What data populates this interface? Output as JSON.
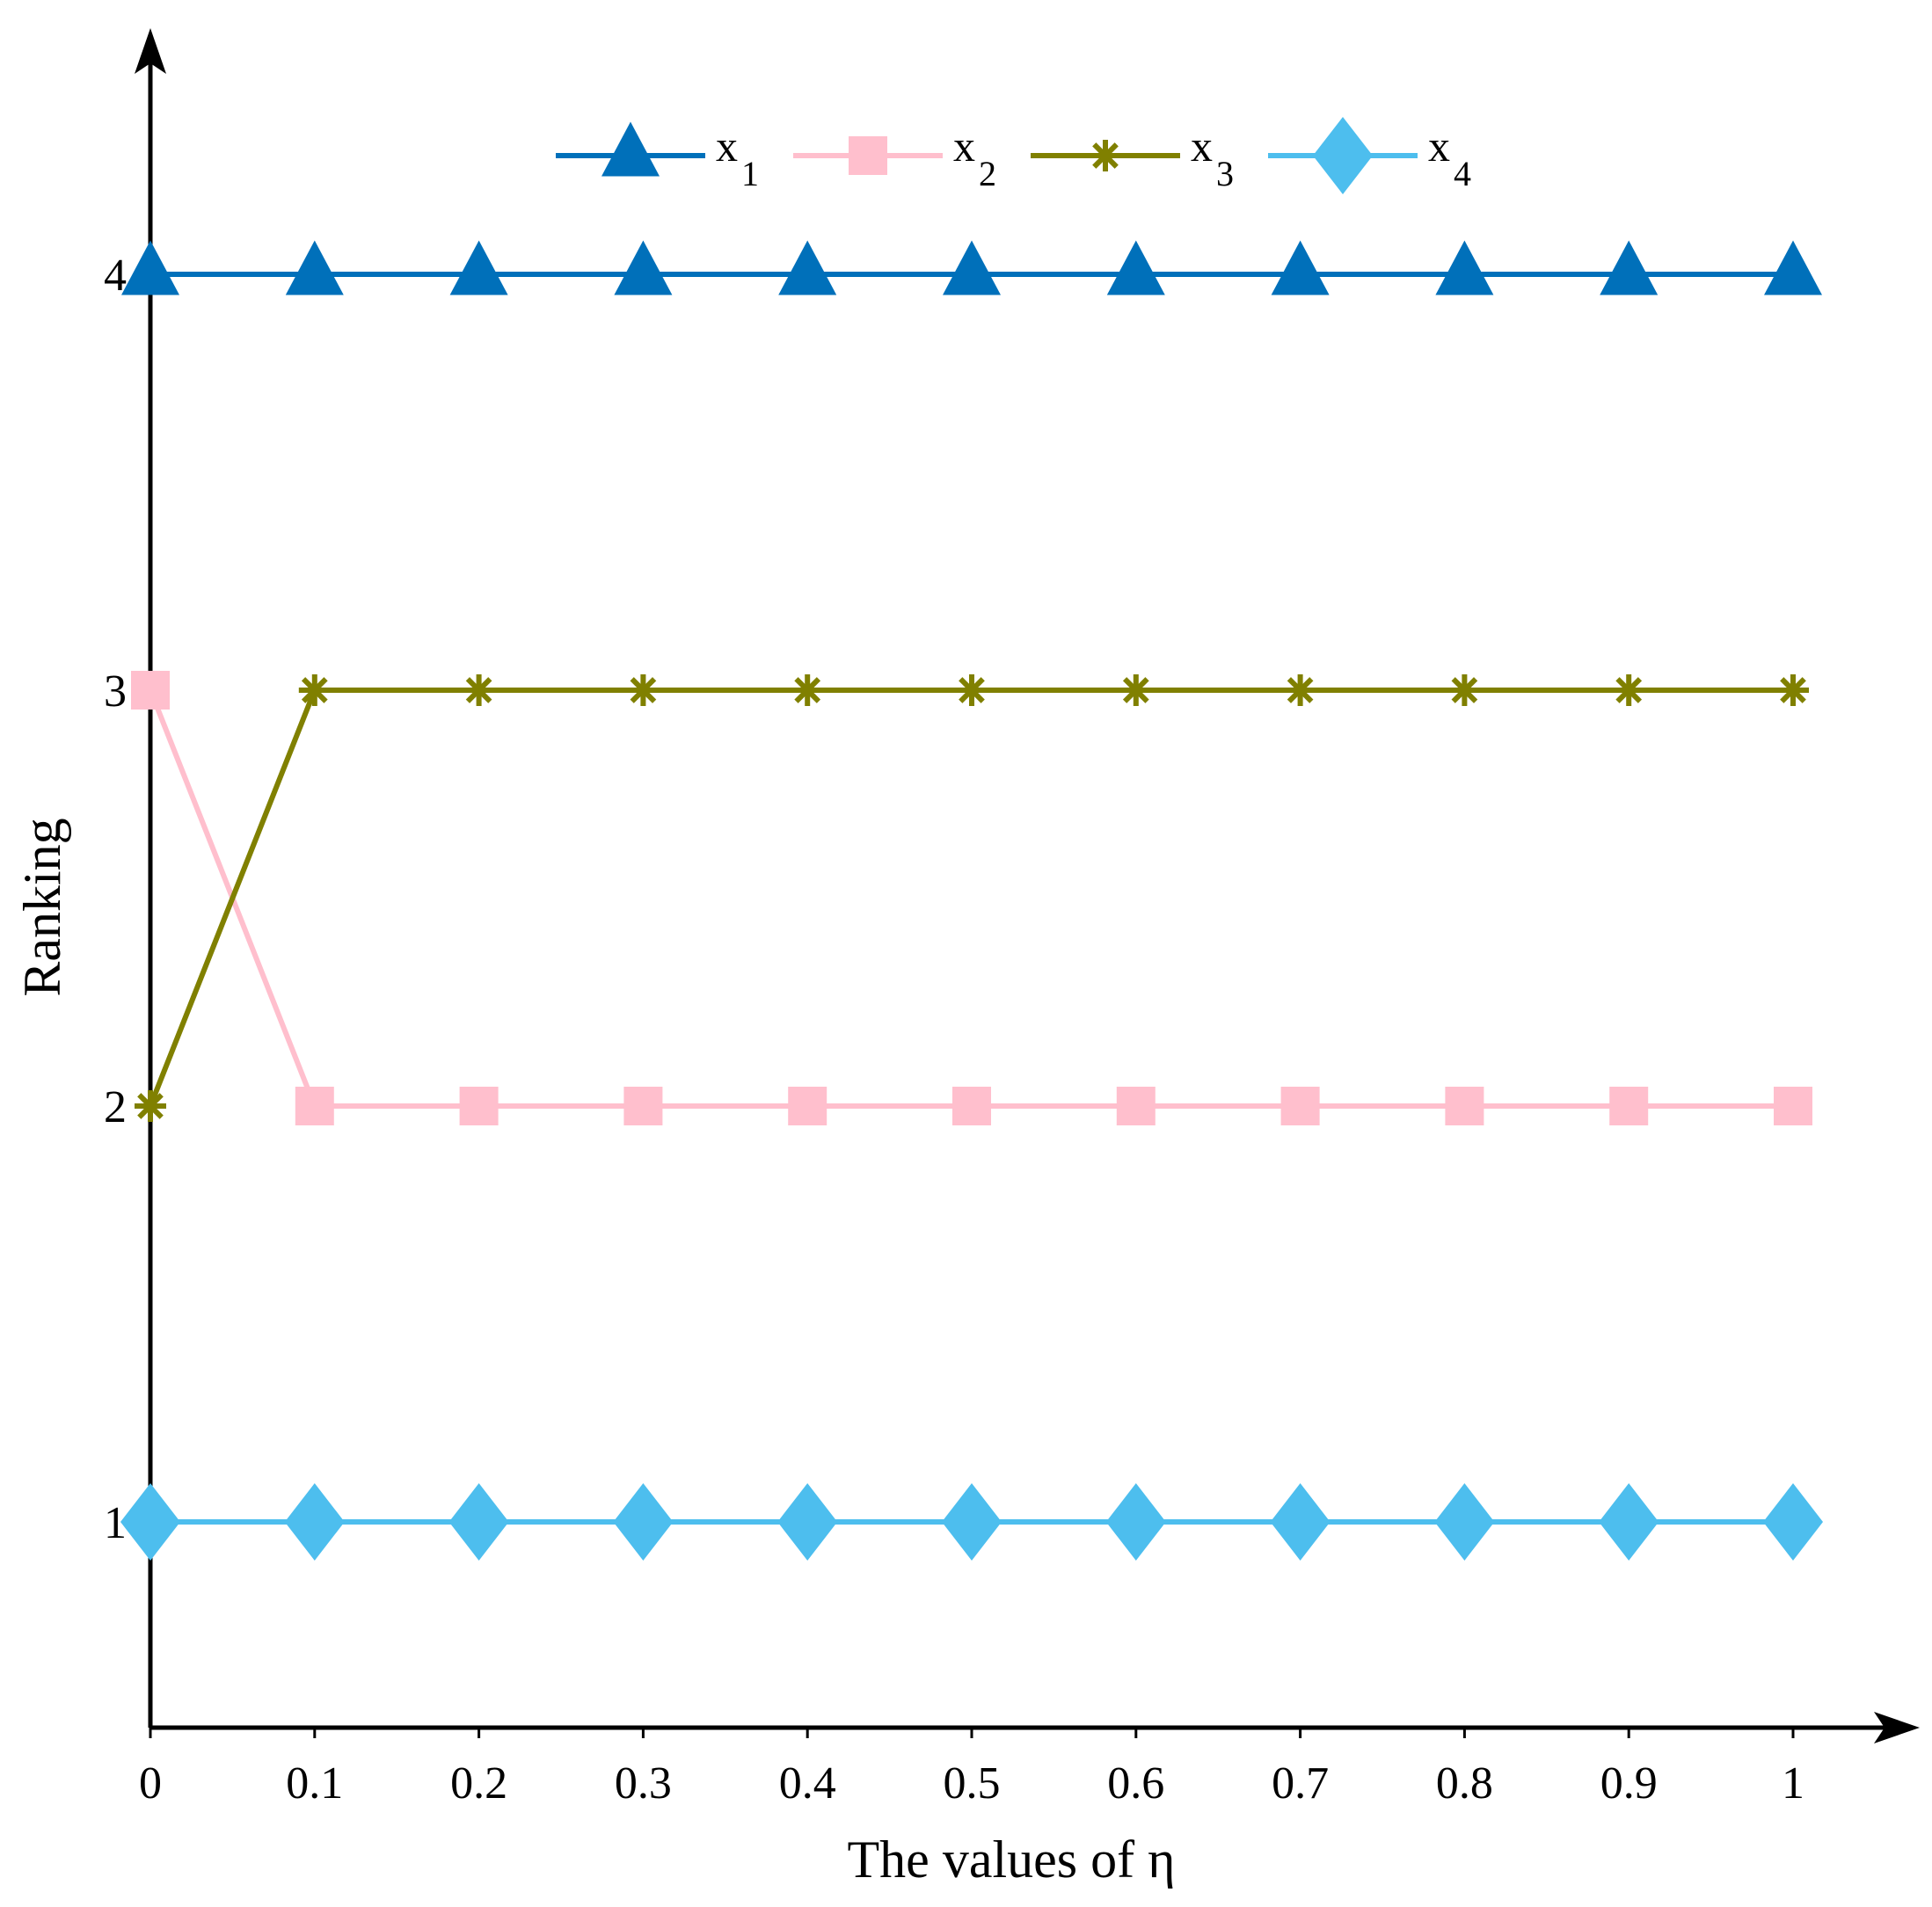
{
  "chart_data": {
    "type": "line",
    "title": "",
    "xlabel": "The values of η",
    "ylabel": "Ranking",
    "x": [
      0,
      0.1,
      0.2,
      0.3,
      0.4,
      0.5,
      0.6,
      0.7,
      0.8,
      0.9,
      1
    ],
    "x_tick_labels": [
      "0",
      "0.1",
      "0.2",
      "0.3",
      "0.4",
      "0.5",
      "0.6",
      "0.7",
      "0.8",
      "0.9",
      "1"
    ],
    "y_ticks": [
      1,
      2,
      3,
      4
    ],
    "y_tick_labels": [
      "1",
      "2",
      "3",
      "4"
    ],
    "xlim": [
      0,
      1.07
    ],
    "ylim": [
      0.5,
      4.6
    ],
    "grid": false,
    "legend_position": "top-center",
    "series": [
      {
        "name": "x",
        "sub": "1",
        "marker": "triangle",
        "color": "#0070BA",
        "values": [
          4,
          4,
          4,
          4,
          4,
          4,
          4,
          4,
          4,
          4,
          4
        ]
      },
      {
        "name": "x",
        "sub": "2",
        "marker": "square",
        "color": "#FFBFCD",
        "values": [
          3,
          2,
          2,
          2,
          2,
          2,
          2,
          2,
          2,
          2,
          2
        ]
      },
      {
        "name": "x",
        "sub": "3",
        "marker": "asterisk",
        "color": "#808000",
        "values": [
          2,
          3,
          3,
          3,
          3,
          3,
          3,
          3,
          3,
          3,
          3
        ]
      },
      {
        "name": "x",
        "sub": "4",
        "marker": "diamond",
        "color": "#4DBEEE",
        "values": [
          1,
          1,
          1,
          1,
          1,
          1,
          1,
          1,
          1,
          1,
          1
        ]
      }
    ]
  }
}
